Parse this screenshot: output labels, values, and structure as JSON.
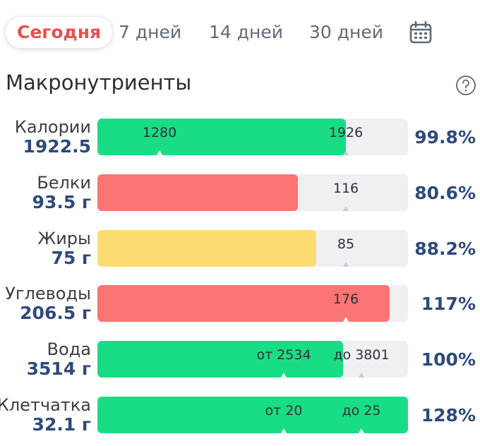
{
  "tabs": [
    {
      "label": "Сегодня",
      "active": true
    },
    {
      "label": "7 дней",
      "active": false
    },
    {
      "label": "14 дней",
      "active": false
    },
    {
      "label": "30 дней",
      "active": false
    }
  ],
  "icons": {
    "calendar": "calendar-icon",
    "help": "help-circle-icon"
  },
  "section": {
    "title": "Макронутриенты"
  },
  "colors": {
    "green": "#19dd85",
    "red": "#fd7474",
    "yellow": "#fddc72",
    "track": "#eef0f3",
    "accent_tab": "#e8514f",
    "value_text": "#2f4a7a"
  },
  "rows": [
    {
      "name": "Калории",
      "amount": "1922.5",
      "percent": "99.8%",
      "color": "green",
      "fill_fraction": 0.8,
      "markers": [
        {
          "label": "1280",
          "pos": 0.2
        },
        {
          "label": "1926",
          "pos": 0.8
        }
      ]
    },
    {
      "name": "Белки",
      "amount": "93.5 г",
      "percent": "80.6%",
      "color": "red",
      "fill_fraction": 0.645,
      "markers": [
        {
          "label": "116",
          "pos": 0.8
        }
      ]
    },
    {
      "name": "Жиры",
      "amount": "75 г",
      "percent": "88.2%",
      "color": "yellow",
      "fill_fraction": 0.705,
      "markers": [
        {
          "label": "85",
          "pos": 0.8
        }
      ]
    },
    {
      "name": "Углеводы",
      "amount": "206.5 г",
      "percent": "117%",
      "color": "red",
      "fill_fraction": 0.94,
      "markers": [
        {
          "label": "176",
          "pos": 0.8
        }
      ]
    },
    {
      "name": "Вода",
      "amount": "3514 г",
      "percent": "100%",
      "color": "green",
      "fill_fraction": 0.79,
      "markers": [
        {
          "label": "от 2534",
          "pos": 0.6
        },
        {
          "label": "до 3801",
          "pos": 0.85
        }
      ]
    },
    {
      "name": "Клетчатка",
      "amount": "32.1 г",
      "percent": "128%",
      "color": "green",
      "fill_fraction": 1.0,
      "markers": [
        {
          "label": "от 20",
          "pos": 0.6
        },
        {
          "label": "до 25",
          "pos": 0.85
        }
      ]
    }
  ]
}
